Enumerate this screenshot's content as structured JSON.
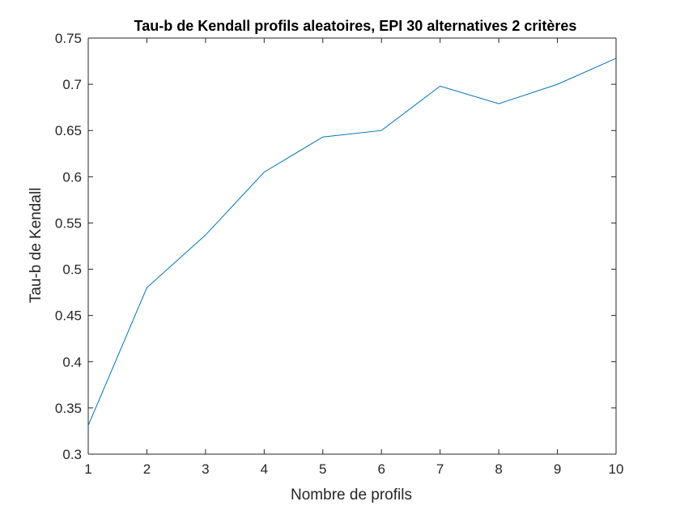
{
  "chart_data": {
    "type": "line",
    "title": "Tau-b de Kendall profils aleatoires, EPI 30 alternatives 2 critères",
    "xlabel": "Nombre de profils",
    "ylabel": "Tau-b de Kendall",
    "xlim": [
      1,
      10
    ],
    "ylim": [
      0.3,
      0.75
    ],
    "xticks": [
      "1",
      "2",
      "3",
      "4",
      "5",
      "6",
      "7",
      "8",
      "9",
      "10"
    ],
    "xtick_values": [
      1,
      2,
      3,
      4,
      5,
      6,
      7,
      8,
      9,
      10
    ],
    "yticks": [
      "0.3",
      "0.35",
      "0.4",
      "0.45",
      "0.5",
      "0.55",
      "0.6",
      "0.65",
      "0.7",
      "0.75"
    ],
    "ytick_values": [
      0.3,
      0.35,
      0.4,
      0.45,
      0.5,
      0.55,
      0.6,
      0.65,
      0.7,
      0.75
    ],
    "grid": false,
    "series": [
      {
        "color": "#0072BD",
        "x": [
          1,
          2,
          3,
          4,
          5,
          6,
          7,
          8,
          9,
          10
        ],
        "y": [
          0.331,
          0.48,
          0.537,
          0.605,
          0.643,
          0.65,
          0.698,
          0.679,
          0.7,
          0.728
        ]
      }
    ],
    "axis_color": "#262626"
  }
}
